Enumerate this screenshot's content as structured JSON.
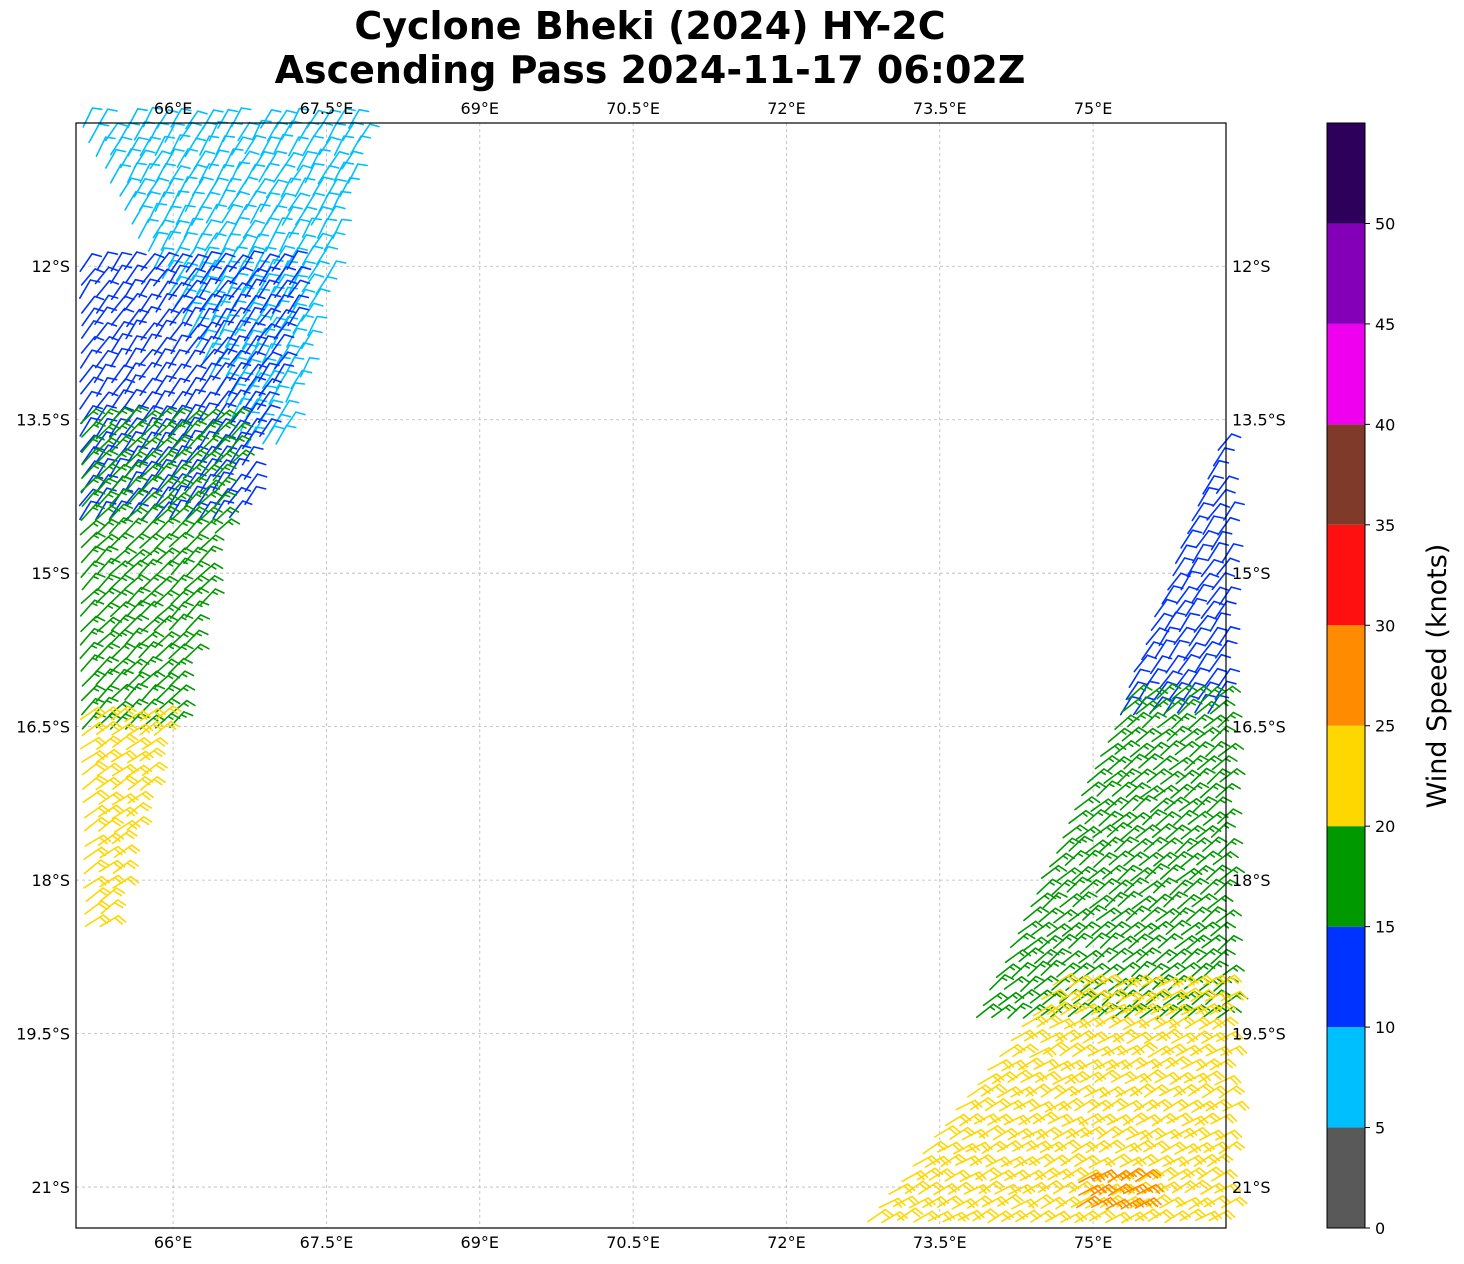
{
  "title": {
    "line1": "Cyclone Bheki (2024) HY-2C",
    "line2": "Ascending Pass 2024-11-17 06:02Z"
  },
  "map": {
    "lon_range": [
      65.05,
      76.3
    ],
    "lat_range": [
      -21.4,
      -10.6
    ],
    "lon_ticks": [
      {
        "value": 66.0,
        "label": "66°E"
      },
      {
        "value": 67.5,
        "label": "67.5°E"
      },
      {
        "value": 69.0,
        "label": "69°E"
      },
      {
        "value": 70.5,
        "label": "70.5°E"
      },
      {
        "value": 72.0,
        "label": "72°E"
      },
      {
        "value": 73.5,
        "label": "73.5°E"
      },
      {
        "value": 75.0,
        "label": "75°E"
      }
    ],
    "lat_ticks": [
      {
        "value": -12.0,
        "label": "12°S"
      },
      {
        "value": -13.5,
        "label": "13.5°S"
      },
      {
        "value": -15.0,
        "label": "15°S"
      },
      {
        "value": -16.5,
        "label": "16.5°S"
      },
      {
        "value": -18.0,
        "label": "18°S"
      },
      {
        "value": -19.5,
        "label": "19.5°S"
      },
      {
        "value": -21.0,
        "label": "21°S"
      }
    ],
    "grid": true
  },
  "wind_barbs": {
    "unit": "knots",
    "regions": [
      {
        "color": "#00bfff",
        "speed": 8,
        "dir_deg": 30,
        "lon": [
          65.05,
          67.8
        ],
        "lat": [
          -10.6,
          -13.8
        ],
        "west_edge": [
          [
            -10.6,
            65.05
          ],
          [
            -13.8,
            66.7
          ]
        ],
        "east_edge": [
          [
            -10.6,
            67.9
          ],
          [
            -13.8,
            67.1
          ]
        ]
      },
      {
        "color": "#0033ff",
        "speed": 12,
        "dir_deg": 35,
        "lon": [
          65.05,
          67.4
        ],
        "lat": [
          -12.0,
          -14.5
        ],
        "west_edge": [
          [
            -12.0,
            65.05
          ],
          [
            -14.5,
            65.05
          ]
        ],
        "east_edge": [
          [
            -12.0,
            67.3
          ],
          [
            -14.5,
            66.7
          ]
        ]
      },
      {
        "color": "#009900",
        "speed": 17,
        "dir_deg": 45,
        "lon": [
          65.05,
          66.6
        ],
        "lat": [
          -13.5,
          -16.6
        ],
        "west_edge": [
          [
            -13.5,
            65.05
          ],
          [
            -16.6,
            65.05
          ]
        ],
        "east_edge": [
          [
            -13.5,
            66.7
          ],
          [
            -16.6,
            66.0
          ]
        ]
      },
      {
        "color": "#ffd700",
        "speed": 22,
        "dir_deg": 55,
        "lon": [
          65.05,
          65.95
        ],
        "lat": [
          -16.4,
          -18.6
        ],
        "west_edge": [
          [
            -16.4,
            65.05
          ],
          [
            -18.6,
            65.1
          ]
        ],
        "east_edge": [
          [
            -16.4,
            65.95
          ],
          [
            -18.6,
            65.3
          ]
        ]
      },
      {
        "color": "#0033ff",
        "speed": 12,
        "dir_deg": 35,
        "lon": [
          75.2,
          76.3
        ],
        "lat": [
          -13.5,
          -16.4
        ],
        "west_edge": [
          [
            -13.5,
            76.3
          ],
          [
            -16.4,
            75.2
          ]
        ],
        "east_edge": [
          [
            -13.5,
            76.3
          ],
          [
            -16.4,
            76.3
          ]
        ]
      },
      {
        "color": "#009900",
        "speed": 17,
        "dir_deg": 50,
        "lon": [
          73.8,
          76.3
        ],
        "lat": [
          -16.2,
          -19.4
        ],
        "west_edge": [
          [
            -16.2,
            75.3
          ],
          [
            -19.4,
            73.8
          ]
        ],
        "east_edge": [
          [
            -16.2,
            76.3
          ],
          [
            -19.4,
            76.3
          ]
        ]
      },
      {
        "color": "#ffd700",
        "speed": 22,
        "dir_deg": 60,
        "lon": [
          72.7,
          76.3
        ],
        "lat": [
          -19.0,
          -21.4
        ],
        "west_edge": [
          [
            -19.0,
            74.6
          ],
          [
            -21.4,
            72.7
          ]
        ],
        "east_edge": [
          [
            -19.0,
            76.3
          ],
          [
            -21.4,
            76.3
          ]
        ]
      },
      {
        "color": "#ff8c00",
        "speed": 27,
        "dir_deg": 60,
        "lon": [
          74.8,
          75.6
        ],
        "lat": [
          -20.9,
          -21.3
        ],
        "west_edge": [
          [
            -20.9,
            74.8
          ],
          [
            -21.3,
            74.8
          ]
        ],
        "east_edge": [
          [
            -20.9,
            75.6
          ],
          [
            -21.3,
            75.6
          ]
        ]
      }
    ]
  },
  "colorbar": {
    "label": "Wind Speed (knots)",
    "bins": [
      {
        "from": 0,
        "to": 5,
        "color": "#595959"
      },
      {
        "from": 5,
        "to": 10,
        "color": "#00bfff"
      },
      {
        "from": 10,
        "to": 15,
        "color": "#0033ff"
      },
      {
        "from": 15,
        "to": 20,
        "color": "#009900"
      },
      {
        "from": 20,
        "to": 25,
        "color": "#ffd700"
      },
      {
        "from": 25,
        "to": 30,
        "color": "#ff8c00"
      },
      {
        "from": 30,
        "to": 35,
        "color": "#ff1010"
      },
      {
        "from": 35,
        "to": 40,
        "color": "#7f3a2a"
      },
      {
        "from": 40,
        "to": 45,
        "color": "#ef00ef"
      },
      {
        "from": 45,
        "to": 50,
        "color": "#8400b8"
      },
      {
        "from": 50,
        "to": 55,
        "color": "#2d005c"
      }
    ],
    "ticks": [
      "0",
      "5",
      "10",
      "15",
      "20",
      "25",
      "30",
      "35",
      "40",
      "45",
      "50"
    ]
  }
}
